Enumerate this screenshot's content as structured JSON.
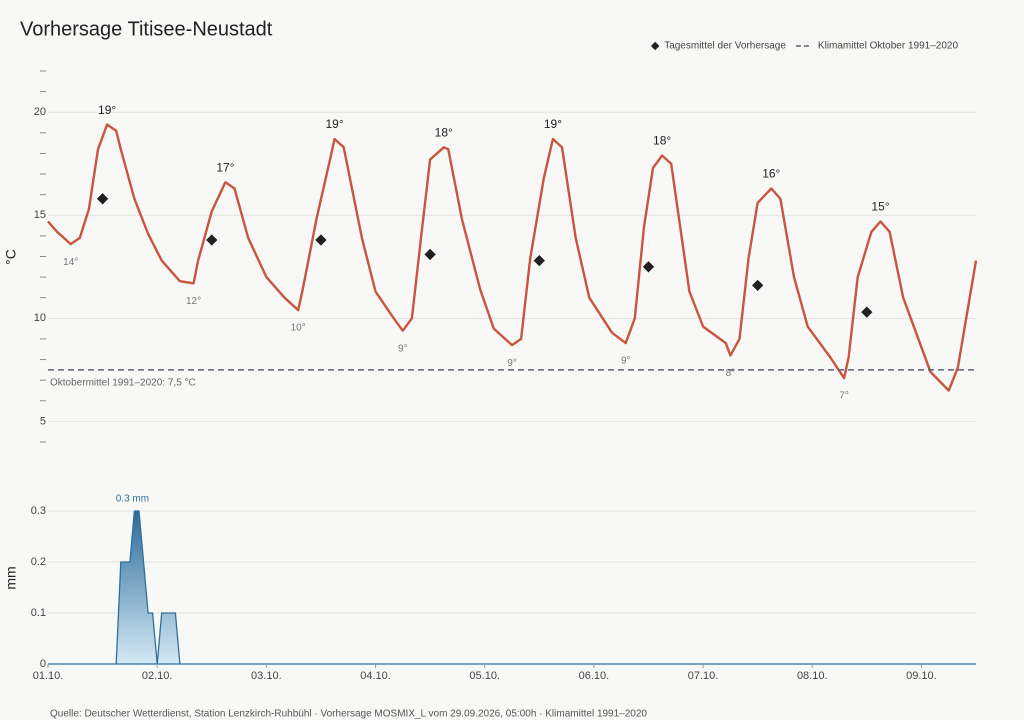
{
  "chart_data": [
    {
      "type": "line",
      "title": "Vorhersage Titisee-Neustadt",
      "y_label": "°C",
      "xlim": [
        0,
        204
      ],
      "ylim": [
        4,
        22
      ],
      "yticks": [
        5,
        10,
        15,
        20
      ],
      "minor_yticks": [
        4,
        6,
        7,
        8,
        9,
        11,
        12,
        13,
        14,
        16,
        17,
        18,
        19,
        21,
        22
      ],
      "grid": true,
      "legend": "top-right",
      "series": [
        {
          "color": "#c9553f",
          "x": [
            0,
            2,
            5,
            7,
            9,
            11,
            13,
            15,
            16,
            19,
            22,
            25,
            27,
            29,
            32,
            33,
            36,
            39,
            41,
            44,
            48,
            52,
            55,
            56,
            59,
            62,
            63,
            65,
            69,
            72,
            76,
            78,
            80,
            82,
            84,
            87,
            88,
            91,
            95,
            98,
            102,
            104,
            106,
            109,
            111,
            113,
            116,
            119,
            124,
            127,
            129,
            131,
            133,
            135,
            137,
            139,
            141,
            144,
            149,
            150,
            152,
            154,
            156,
            159,
            161,
            164,
            167,
            172,
            175,
            176,
            178,
            181,
            183,
            185,
            188,
            192,
            194,
            198,
            200,
            204
          ],
          "values": [
            14.7,
            14.2,
            13.6,
            13.9,
            15.3,
            18.2,
            19.4,
            19.1,
            18.2,
            15.8,
            14.1,
            12.8,
            12.3,
            11.8,
            11.7,
            12.8,
            15.2,
            16.6,
            16.3,
            13.9,
            12.0,
            11.0,
            10.4,
            11.4,
            14.8,
            17.7,
            18.7,
            18.3,
            13.9,
            11.3,
            10.0,
            9.4,
            10.0,
            13.9,
            17.7,
            18.3,
            18.2,
            14.8,
            11.4,
            9.5,
            8.7,
            9.0,
            12.9,
            16.8,
            18.7,
            18.3,
            13.9,
            11.0,
            9.3,
            8.8,
            10.0,
            14.4,
            17.3,
            17.9,
            17.5,
            14.4,
            11.3,
            9.6,
            8.8,
            8.2,
            9.0,
            12.9,
            15.6,
            16.3,
            15.8,
            12.0,
            9.6,
            8.1,
            7.1,
            8.1,
            12.0,
            14.2,
            14.7,
            14.2,
            11.0,
            8.6,
            7.4,
            6.5,
            7.6,
            12.8
          ],
          "value_labels": [
            null,
            null,
            "14°",
            null,
            null,
            null,
            "19°",
            null,
            null,
            null,
            null,
            null,
            null,
            null,
            "12°",
            null,
            null,
            "17°",
            null,
            null,
            null,
            null,
            "10°",
            null,
            null,
            null,
            "19°",
            null,
            null,
            null,
            null,
            "9°",
            null,
            null,
            null,
            "18°",
            null,
            null,
            null,
            null,
            "9°",
            null,
            null,
            null,
            "19°",
            null,
            null,
            null,
            null,
            "9°",
            null,
            null,
            null,
            "18°",
            null,
            null,
            null,
            null,
            null,
            "8°",
            null,
            null,
            null,
            "16°",
            null,
            null,
            null,
            null,
            "7°",
            null,
            null,
            null,
            "15°",
            null,
            null,
            null,
            null,
            null,
            null,
            null
          ]
        },
        {
          "name": "Tagesmittel der Vorhersage",
          "marker": "diamond",
          "color": "#1f1f24",
          "x": [
            12,
            36,
            60,
            84,
            108,
            132,
            156,
            180
          ],
          "values": [
            15.8,
            13.8,
            13.8,
            13.1,
            12.8,
            12.5,
            11.6,
            10.3
          ]
        }
      ],
      "reference_line": {
        "name": "Klimamittel Oktober 1991–2020",
        "value": 7.5,
        "label": "Oktobermittel 1991–2020: 7,5 °C",
        "color": "#5a6275"
      }
    },
    {
      "type": "area",
      "y_label": "mm",
      "xlim": [
        0,
        204
      ],
      "ylim": [
        0,
        0.3
      ],
      "yticks": [
        0,
        0.1,
        0.2,
        0.3
      ],
      "xticks": [
        {
          "value": 0,
          "label": "01.10."
        },
        {
          "value": 24,
          "label": "02.10."
        },
        {
          "value": 48,
          "label": "03.10."
        },
        {
          "value": 72,
          "label": "04.10."
        },
        {
          "value": 96,
          "label": "05.10."
        },
        {
          "value": 120,
          "label": "06.10."
        },
        {
          "value": 144,
          "label": "07.10."
        },
        {
          "value": 168,
          "label": "08.10."
        },
        {
          "value": 192,
          "label": "09.10."
        }
      ],
      "grid": true,
      "series": [
        {
          "color": "#2f6f9b",
          "x": [
            0,
            15,
            16,
            18,
            19,
            20,
            22,
            23,
            24,
            25,
            28,
            29,
            204
          ],
          "values": [
            0,
            0,
            0.2,
            0.2,
            0.3,
            0.3,
            0.1,
            0.1,
            0,
            0.1,
            0.1,
            0,
            0
          ],
          "value_labels": [
            null,
            null,
            null,
            null,
            "0.3 mm",
            null,
            null,
            null,
            null,
            null,
            null,
            null,
            null
          ]
        }
      ]
    }
  ],
  "footer": "Quelle: Deutscher Wetterdienst, Station Lenzkirch-Ruhbühl · Vorhersage MOSMIX_L vom 29.09.2026, 05:00h · Klimamittel 1991–2020"
}
